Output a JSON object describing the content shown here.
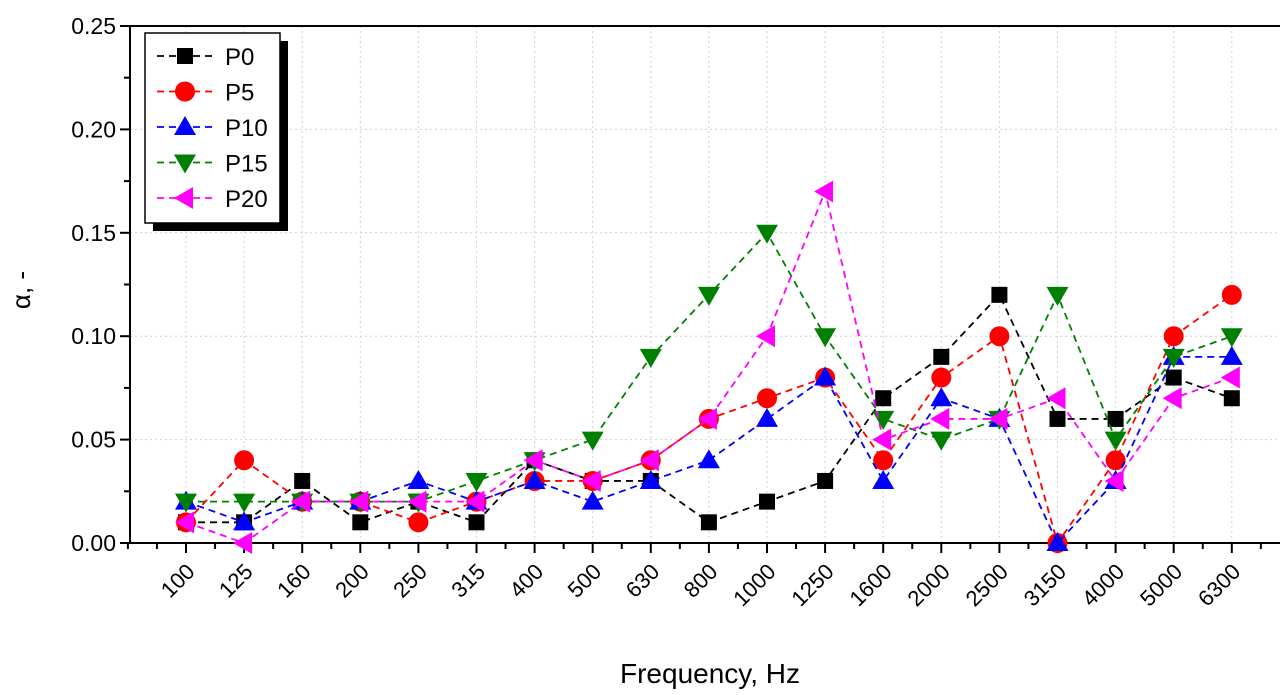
{
  "chart_data": {
    "type": "line",
    "xlabel": "Frequency, Hz",
    "ylabel": "α, -",
    "categories": [
      "100",
      "125",
      "160",
      "200",
      "250",
      "315",
      "400",
      "500",
      "630",
      "800",
      "1000",
      "1250",
      "1600",
      "2000",
      "2500",
      "3150",
      "4000",
      "5000",
      "6300"
    ],
    "ylim": [
      0,
      0.25
    ],
    "yticks": [
      "0.00",
      "0.05",
      "0.10",
      "0.15",
      "0.20",
      "0.25"
    ],
    "grid": true,
    "legend_position": "top-left",
    "series": [
      {
        "name": "P0",
        "marker": "square",
        "color": "#000000",
        "values": [
          0.01,
          0.01,
          0.03,
          0.01,
          0.02,
          0.01,
          0.04,
          0.03,
          0.03,
          0.01,
          0.02,
          0.03,
          0.07,
          0.09,
          0.12,
          0.06,
          0.06,
          0.08,
          0.07
        ]
      },
      {
        "name": "P5",
        "marker": "circle",
        "color": "#ff0000",
        "values": [
          0.01,
          0.04,
          0.02,
          0.02,
          0.01,
          0.02,
          0.03,
          0.03,
          0.04,
          0.06,
          0.07,
          0.08,
          0.04,
          0.08,
          0.1,
          0.0,
          0.04,
          0.1,
          0.12
        ]
      },
      {
        "name": "P10",
        "marker": "triangle-up",
        "color": "#0000ff",
        "values": [
          0.02,
          0.01,
          0.02,
          0.02,
          0.03,
          0.02,
          0.03,
          0.02,
          0.03,
          0.04,
          0.06,
          0.08,
          0.03,
          0.07,
          0.06,
          0.0,
          0.03,
          0.09,
          0.09
        ]
      },
      {
        "name": "P15",
        "marker": "triangle-down",
        "color": "#008000",
        "values": [
          0.02,
          0.02,
          0.02,
          0.02,
          0.02,
          0.03,
          0.04,
          0.05,
          0.09,
          0.12,
          0.15,
          0.1,
          0.06,
          0.05,
          0.06,
          0.12,
          0.05,
          0.09,
          0.1
        ]
      },
      {
        "name": "P20",
        "marker": "triangle-left",
        "color": "#ff00ff",
        "values": [
          0.01,
          0.0,
          0.02,
          0.02,
          0.02,
          0.02,
          0.04,
          0.03,
          0.04,
          0.06,
          0.1,
          0.17,
          0.05,
          0.06,
          0.06,
          0.07,
          0.03,
          0.07,
          0.08
        ]
      }
    ]
  }
}
